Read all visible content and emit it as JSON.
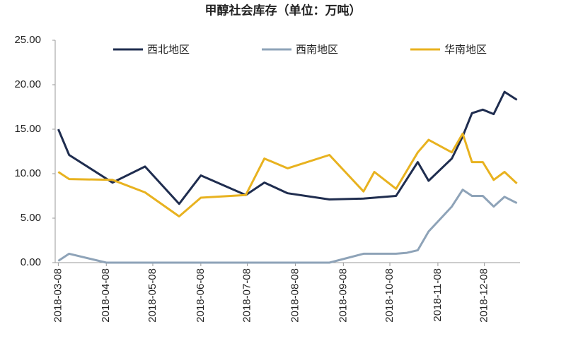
{
  "chart_data": {
    "type": "line",
    "title": "甲醇社会库存（单位：万吨）",
    "xlim": [
      "2018-03-06",
      "2018-12-31"
    ],
    "xticks": [
      "2018-03-08",
      "2018-04-08",
      "2018-05-08",
      "2018-06-08",
      "2018-07-08",
      "2018-08-08",
      "2018-09-08",
      "2018-10-08",
      "2018-11-08",
      "2018-12-08"
    ],
    "ylim": [
      0,
      25
    ],
    "yticks": [
      {
        "value": 0,
        "label": "0.00"
      },
      {
        "value": 5,
        "label": "5.00"
      },
      {
        "value": 10,
        "label": "10.00"
      },
      {
        "value": 15,
        "label": "15.00"
      },
      {
        "value": 20,
        "label": "20.00"
      },
      {
        "value": 25,
        "label": "25.00"
      }
    ],
    "series": [
      {
        "name": "西北地区",
        "color": "#1f2d4f",
        "x": [
          "2018-03-08",
          "2018-03-15",
          "2018-04-12",
          "2018-05-03",
          "2018-05-25",
          "2018-06-08",
          "2018-07-07",
          "2018-07-19",
          "2018-08-03",
          "2018-08-30",
          "2018-09-21",
          "2018-10-12",
          "2018-10-26",
          "2018-11-02",
          "2018-11-17",
          "2018-11-24",
          "2018-11-30",
          "2018-12-07",
          "2018-12-14",
          "2018-12-21",
          "2018-12-29"
        ],
        "values": [
          15.0,
          12.1,
          9.0,
          10.8,
          6.6,
          9.8,
          7.6,
          9.0,
          7.8,
          7.1,
          7.2,
          7.5,
          11.3,
          9.2,
          11.7,
          14.2,
          16.8,
          17.2,
          16.7,
          19.2,
          18.3
        ]
      },
      {
        "name": "西南地区",
        "color": "#8ea3b8",
        "x": [
          "2018-03-08",
          "2018-03-15",
          "2018-04-08",
          "2018-08-30",
          "2018-09-21",
          "2018-10-12",
          "2018-10-19",
          "2018-10-26",
          "2018-11-02",
          "2018-11-17",
          "2018-11-24",
          "2018-11-30",
          "2018-12-07",
          "2018-12-14",
          "2018-12-21",
          "2018-12-29"
        ],
        "values": [
          0.2,
          1.0,
          0,
          0,
          1.0,
          1.0,
          1.1,
          1.4,
          3.5,
          6.3,
          8.2,
          7.5,
          7.5,
          6.3,
          7.4,
          6.7
        ]
      },
      {
        "name": "华南地区",
        "color": "#e8b21f",
        "x": [
          "2018-03-08",
          "2018-03-15",
          "2018-04-12",
          "2018-05-03",
          "2018-05-25",
          "2018-06-08",
          "2018-07-07",
          "2018-07-19",
          "2018-08-03",
          "2018-08-30",
          "2018-09-21",
          "2018-09-28",
          "2018-10-12",
          "2018-10-26",
          "2018-11-02",
          "2018-11-17",
          "2018-11-24",
          "2018-11-30",
          "2018-12-07",
          "2018-12-14",
          "2018-12-21",
          "2018-12-29"
        ],
        "values": [
          10.2,
          9.4,
          9.3,
          7.9,
          5.2,
          7.3,
          7.6,
          11.7,
          10.6,
          12.1,
          8.0,
          10.2,
          8.3,
          12.4,
          13.8,
          12.4,
          14.5,
          11.3,
          11.3,
          9.3,
          10.2,
          8.9
        ]
      }
    ]
  }
}
